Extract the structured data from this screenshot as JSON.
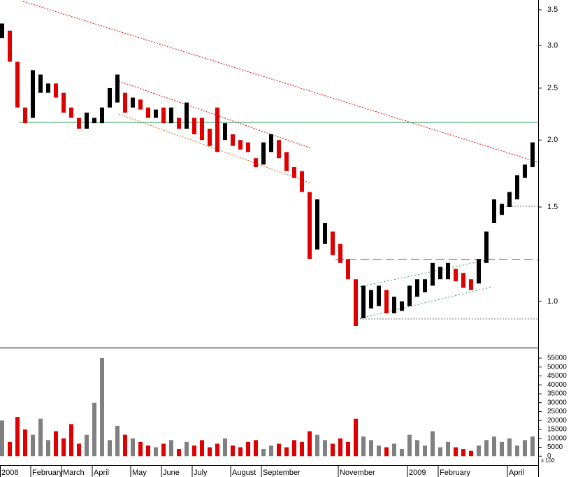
{
  "chart_data": [
    {
      "type": "range-bar",
      "categories": [
        "2008",
        null,
        null,
        null,
        "February",
        null,
        null,
        null,
        "March",
        null,
        null,
        null,
        "April",
        null,
        null,
        null,
        null,
        "May",
        null,
        null,
        null,
        "June",
        null,
        null,
        null,
        "July",
        null,
        null,
        null,
        null,
        "August",
        null,
        null,
        null,
        "September",
        null,
        null,
        null,
        null,
        null,
        null,
        null,
        null,
        null,
        "November",
        null,
        null,
        null,
        null,
        null,
        null,
        null,
        null,
        "2009",
        null,
        null,
        null,
        "February",
        null,
        null,
        null,
        null,
        null,
        null,
        null,
        null,
        "April",
        null,
        null,
        null
      ],
      "high": [
        3.3,
        3.2,
        2.8,
        2.3,
        2.7,
        2.65,
        2.55,
        2.55,
        2.45,
        2.3,
        2.2,
        2.25,
        2.2,
        2.3,
        2.5,
        2.65,
        2.45,
        2.4,
        2.38,
        2.3,
        2.28,
        2.3,
        2.3,
        2.2,
        2.35,
        2.2,
        2.2,
        2.1,
        2.3,
        2.15,
        2.05,
        2.0,
        1.98,
        1.85,
        1.98,
        2.05,
        2.0,
        1.9,
        1.78,
        1.75,
        1.6,
        1.55,
        1.4,
        1.35,
        1.28,
        1.2,
        1.1,
        1.07,
        1.05,
        1.07,
        1.05,
        1.02,
        1.0,
        1.07,
        1.1,
        1.1,
        1.18,
        1.16,
        1.18,
        1.15,
        1.13,
        1.1,
        1.2,
        1.35,
        1.55,
        1.52,
        1.6,
        1.72,
        1.8,
        1.98
      ],
      "low": [
        3.1,
        2.8,
        2.3,
        2.15,
        2.2,
        2.45,
        2.45,
        2.4,
        2.25,
        2.2,
        2.1,
        2.1,
        2.15,
        2.15,
        2.3,
        2.35,
        2.25,
        2.3,
        2.28,
        2.2,
        2.2,
        2.15,
        2.15,
        2.1,
        2.1,
        2.05,
        2.0,
        1.95,
        1.9,
        2.0,
        1.95,
        1.92,
        1.9,
        1.78,
        1.8,
        1.9,
        1.85,
        1.75,
        1.7,
        1.6,
        1.2,
        1.25,
        1.28,
        1.22,
        1.18,
        1.1,
        0.9,
        0.93,
        0.97,
        0.98,
        0.95,
        0.95,
        0.96,
        0.98,
        1.02,
        1.04,
        1.07,
        1.1,
        1.1,
        1.09,
        1.06,
        1.05,
        1.08,
        1.18,
        1.4,
        1.45,
        1.5,
        1.55,
        1.7,
        1.78
      ],
      "up_color": "#000000",
      "down_color": "#e00000",
      "log_scale": true,
      "ylim": [
        0.82,
        3.65
      ],
      "yticks": [
        {
          "value": 1,
          "label": "1.0"
        },
        {
          "value": 1.5,
          "label": "1.5"
        },
        {
          "value": 2,
          "label": "2.0"
        },
        {
          "value": 2.5,
          "label": "2.5"
        },
        {
          "value": 3,
          "label": "3.0"
        },
        {
          "value": 3.5,
          "label": "3.5"
        }
      ]
    },
    {
      "type": "bar",
      "values": [
        20000,
        8000,
        22000,
        15000,
        12000,
        21000,
        9000,
        14000,
        10000,
        18000,
        7000,
        12000,
        30000,
        55000,
        9000,
        17000,
        12000,
        10000,
        8000,
        6000,
        5000,
        7000,
        9000,
        4000,
        8000,
        6000,
        9000,
        5000,
        7000,
        10000,
        6000,
        5000,
        8000,
        9000,
        4000,
        6000,
        7000,
        5000,
        9000,
        8000,
        14000,
        12000,
        9000,
        7000,
        10000,
        8000,
        21000,
        11000,
        9000,
        6000,
        5000,
        7000,
        4000,
        12000,
        9000,
        6000,
        14000,
        5000,
        8000,
        5000,
        4000,
        3000,
        6000,
        9000,
        11000,
        8000,
        10000,
        6000,
        9000,
        11000
      ],
      "up_color": "#808080",
      "down_color": "#e00000",
      "unit_label": "x 100",
      "ylim": [
        -5000,
        60500
      ],
      "yticks": [
        0,
        5000,
        10000,
        15000,
        20000,
        25000,
        30000,
        35000,
        40000,
        45000,
        50000,
        55000
      ]
    }
  ]
}
